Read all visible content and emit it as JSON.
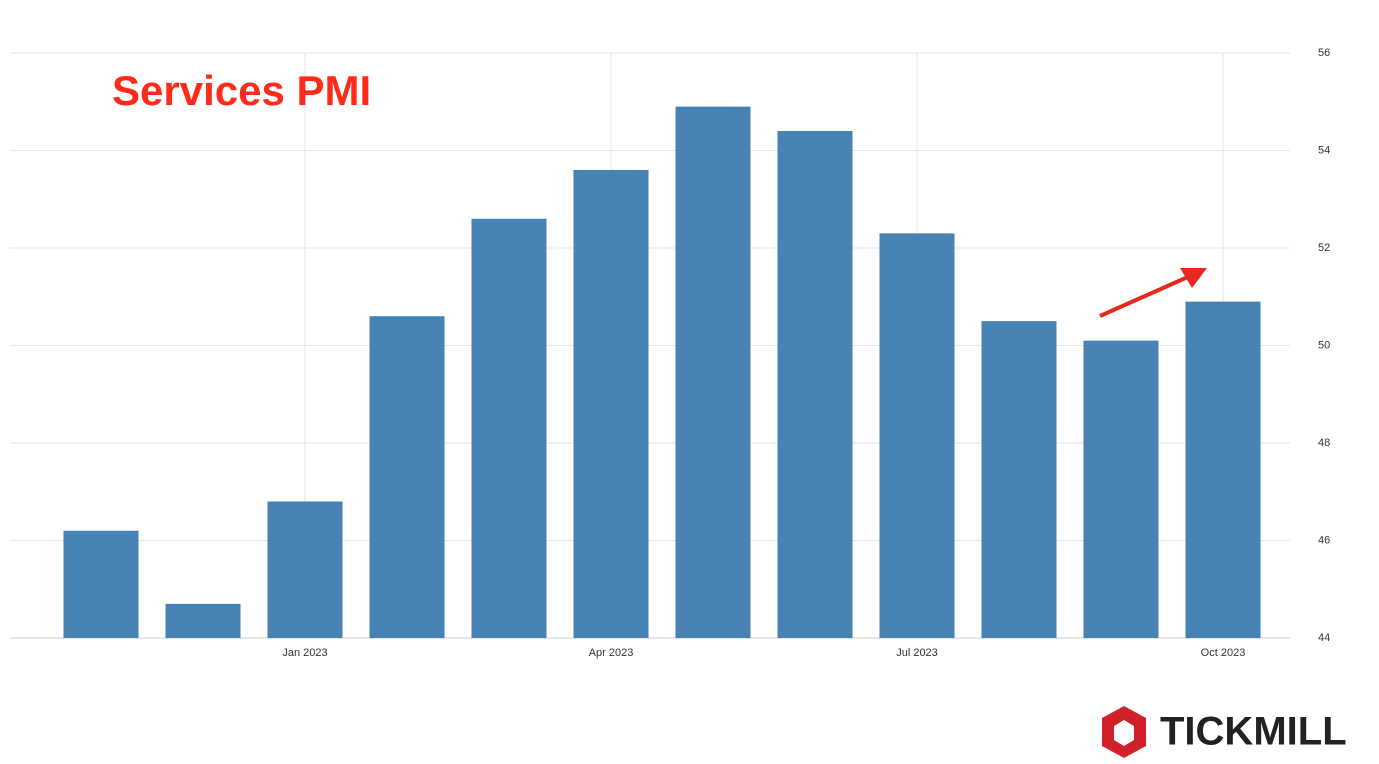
{
  "chart_data": {
    "type": "bar",
    "title": "Services PMI",
    "categories": [
      null,
      null,
      "Jan 2023",
      null,
      null,
      "Apr 2023",
      null,
      null,
      "Jul 2023",
      null,
      null,
      "Oct 2023"
    ],
    "values": [
      46.2,
      44.7,
      46.8,
      50.6,
      52.6,
      53.6,
      54.9,
      54.4,
      52.3,
      50.5,
      50.1,
      50.9
    ],
    "color": "#4682b4",
    "ylim": [
      44,
      56
    ],
    "yticks": [
      44,
      46,
      48,
      50,
      52,
      54,
      56
    ],
    "grid": true
  },
  "logo": {
    "text": "TICKMILL"
  }
}
